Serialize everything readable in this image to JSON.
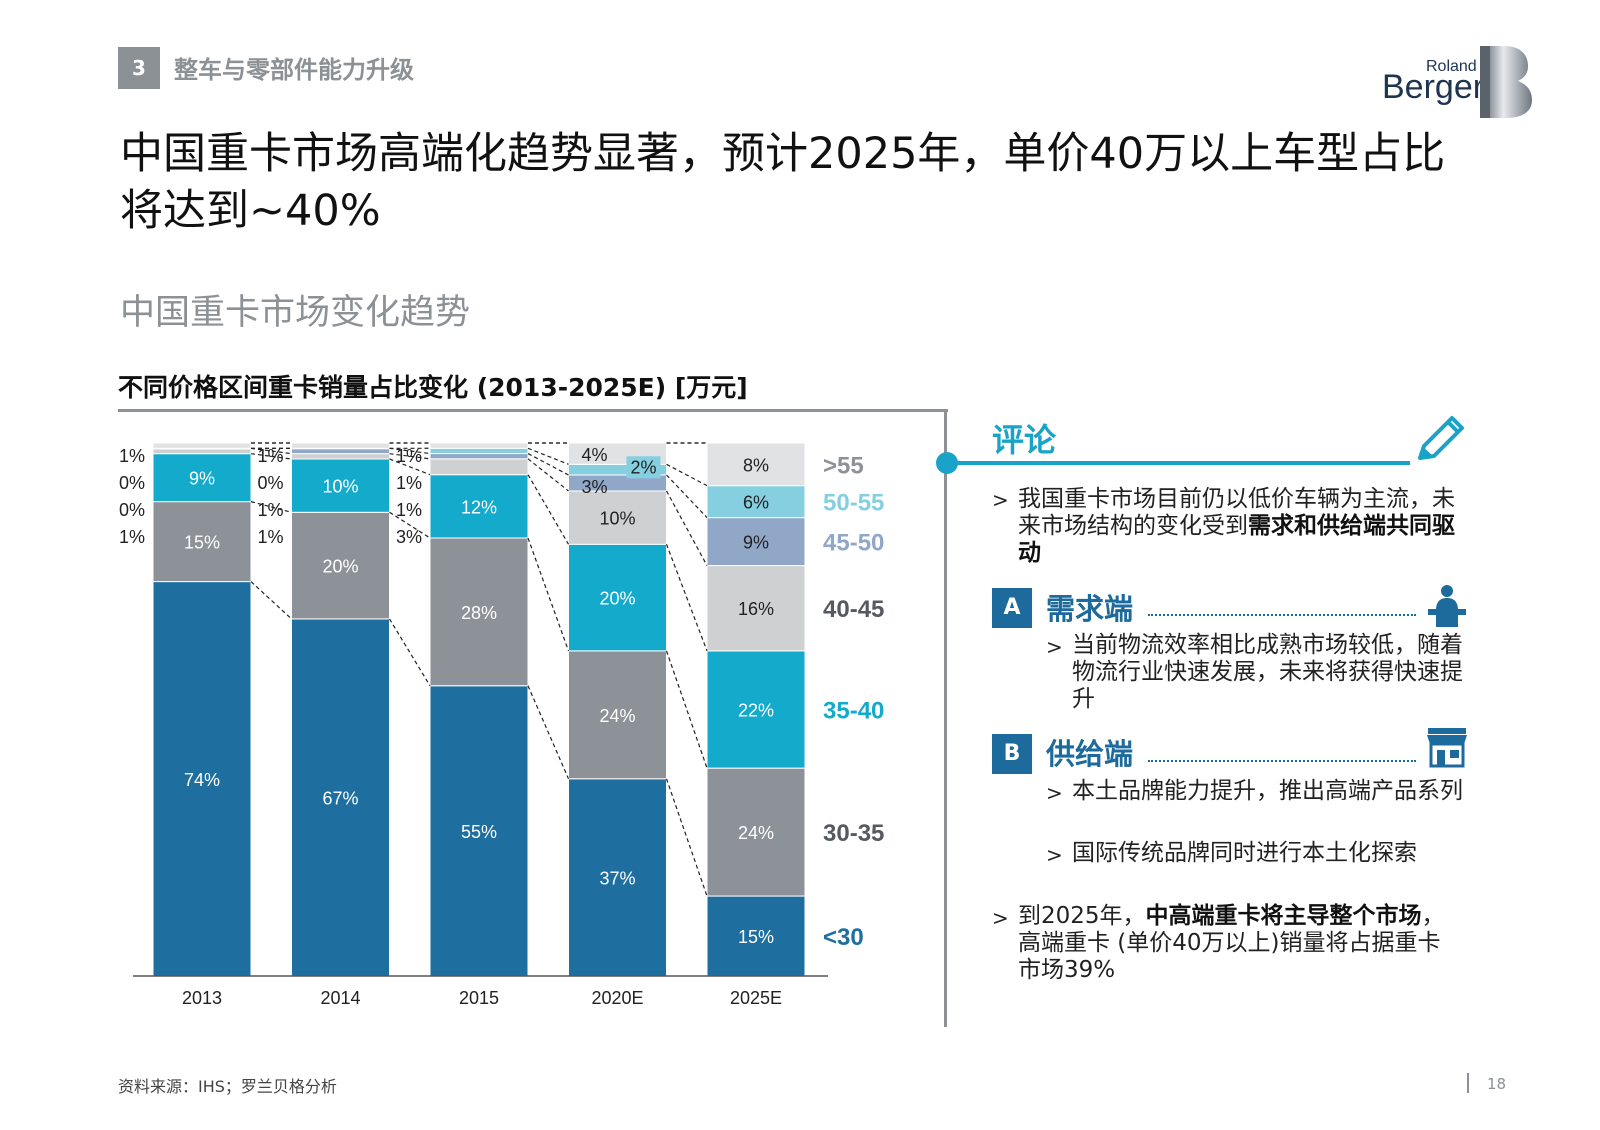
{
  "header": {
    "section_number": "3",
    "section_title": "整车与零部件能力升级",
    "logo_top": "Roland",
    "logo_main": "Berger"
  },
  "title": "中国重卡市场高端化趋势显著，预计2025年，单价40万以上车型占比将达到~40%",
  "subtitle": "中国重卡市场变化趋势",
  "chart_title": "不同价格区间重卡销量占比变化 (2013-2025E) [万元]",
  "chart_data": {
    "type": "bar",
    "stacked": true,
    "categories": [
      "2013",
      "2014",
      "2015",
      "2020E",
      "2025E"
    ],
    "series": [
      {
        "name": "<30",
        "color": "#1e6fa0",
        "values": [
          74,
          67,
          55,
          37,
          15
        ]
      },
      {
        "name": "30-35",
        "color": "#8d9299",
        "values": [
          15,
          20,
          28,
          24,
          24
        ]
      },
      {
        "name": "35-40",
        "color": "#13aacc",
        "values": [
          9,
          10,
          12,
          20,
          22
        ]
      },
      {
        "name": "40-45",
        "color": "#cfd0d2",
        "values": [
          1,
          1,
          3,
          10,
          16
        ]
      },
      {
        "name": "45-50",
        "color": "#91a7c8",
        "values": [
          0,
          1,
          1,
          3,
          9
        ]
      },
      {
        "name": "50-55",
        "color": "#85cfe0",
        "values": [
          0,
          0,
          1,
          2,
          6
        ]
      },
      {
        "name": ">55",
        "color": "#e1e2e4",
        "values": [
          1,
          1,
          1,
          4,
          8
        ]
      }
    ],
    "legend_colors": {
      "<30": "#1e6fa0",
      "30-35": "#555a60",
      "35-40": "#13aacc",
      "40-45": "#555a60",
      "45-50": "#91a7c8",
      "50-55": "#85cfe0",
      ">55": "#8d9299"
    },
    "ylim": [
      0,
      100
    ]
  },
  "comment": {
    "title": "评论",
    "intro": [
      "我国重卡市场目前仍以低价车辆为主流，未来市场结构的变化受到",
      "需求和供给端共同驱动"
    ],
    "sections": [
      {
        "letter": "A",
        "label": "需求端",
        "points": [
          "当前物流效率相比成熟市场较低，随着物流行业快速发展，未来将获得快速提升"
        ]
      },
      {
        "letter": "B",
        "label": "供给端",
        "points": [
          "本土品牌能力提升，推出高端产品系列",
          "国际传统品牌同时进行本土化探索"
        ]
      }
    ],
    "conclusion": [
      "到2025年，",
      "中高端重卡将主导整个市场",
      "，高端重卡 (单价40万以上)销量将占据重卡市场39%"
    ]
  },
  "footer": {
    "source": "资料来源：IHS；罗兰贝格分析",
    "page": "18"
  }
}
